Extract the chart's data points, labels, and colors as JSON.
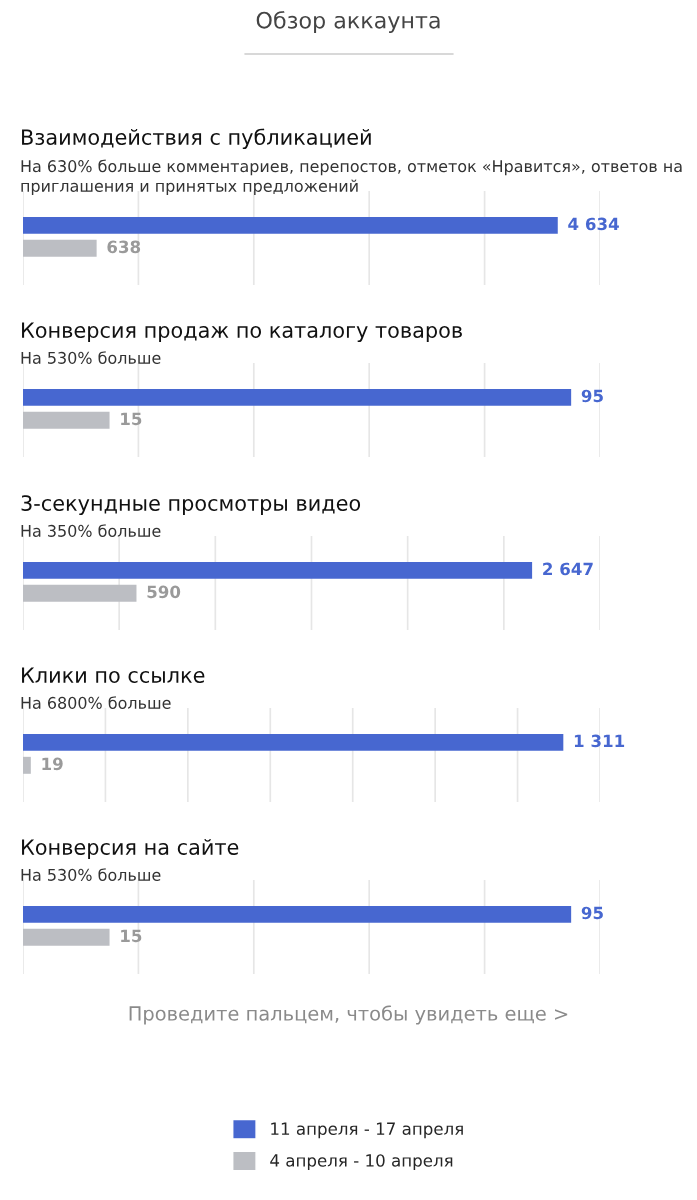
{
  "chart_data": [
    {
      "type": "bar",
      "orientation": "horizontal",
      "title": "Взаимодействия с публикацией",
      "subtitle": "На 630% больше комментариев, перепостов, отметок «Нравится», ответов на приглашения и принятых предложений",
      "annotations": [
        "Обзор аккаунта"
      ],
      "categories": [
        null
      ],
      "xlim": [
        0,
        5000
      ],
      "xticks": [
        {
          "value": 0,
          "label": null
        },
        {
          "value": 1000,
          "label": null
        },
        {
          "value": 2000,
          "label": null
        },
        {
          "value": 3000,
          "label": null
        },
        {
          "value": 4000,
          "label": null
        },
        {
          "value": 5000,
          "label": null
        }
      ],
      "grid": "x",
      "series": [
        {
          "color": "#4767d0",
          "values": [
            4634
          ],
          "value_labels": [
            "4 634"
          ]
        },
        {
          "color": "#bcbec3",
          "values": [
            638
          ],
          "value_labels": [
            "638"
          ]
        }
      ]
    },
    {
      "type": "bar",
      "orientation": "horizontal",
      "title": "Конверсия продаж по каталогу товаров",
      "subtitle": "На 530% больше",
      "categories": [
        null
      ],
      "xlim": [
        0,
        100
      ],
      "xticks": [
        {
          "value": 0,
          "label": null
        },
        {
          "value": 20,
          "label": null
        },
        {
          "value": 40,
          "label": null
        },
        {
          "value": 60,
          "label": null
        },
        {
          "value": 80,
          "label": null
        },
        {
          "value": 100,
          "label": null
        }
      ],
      "grid": "x",
      "data_labels": true,
      "series": [
        {
          "color": "#4767d0",
          "values": [
            95
          ]
        },
        {
          "color": "#bcbec3",
          "values": [
            15
          ]
        }
      ]
    },
    {
      "type": "bar",
      "orientation": "horizontal",
      "title": "3-секундные просмотры видео",
      "subtitle": "На 350% больше",
      "categories": [
        null
      ],
      "xlim": [
        0,
        3000
      ],
      "xticks": [
        {
          "value": 0,
          "label": null
        },
        {
          "value": 500,
          "label": null
        },
        {
          "value": 1000,
          "label": null
        },
        {
          "value": 1500,
          "label": null
        },
        {
          "value": 2000,
          "label": null
        },
        {
          "value": 2500,
          "label": null
        },
        {
          "value": 3000,
          "label": null
        }
      ],
      "grid": "x",
      "series": [
        {
          "color": "#4767d0",
          "values": [
            2647
          ],
          "value_labels": [
            "2 647"
          ]
        },
        {
          "color": "#bcbec3",
          "values": [
            590
          ],
          "value_labels": [
            "590"
          ]
        }
      ]
    },
    {
      "type": "bar",
      "orientation": "horizontal",
      "title": "Клики по ссылке",
      "subtitle": "На 6800% больше",
      "categories": [
        null
      ],
      "xlim": [
        0,
        1400
      ],
      "xticks": [
        {
          "value": 0,
          "label": null
        },
        {
          "value": 200,
          "label": null
        },
        {
          "value": 400,
          "label": null
        },
        {
          "value": 600,
          "label": null
        },
        {
          "value": 800,
          "label": null
        },
        {
          "value": 1000,
          "label": null
        },
        {
          "value": 1200,
          "label": null
        },
        {
          "value": 1400,
          "label": null
        }
      ],
      "grid": "x",
      "series": [
        {
          "color": "#4767d0",
          "values": [
            1311
          ],
          "value_labels": [
            "1 311"
          ]
        },
        {
          "color": "#bcbec3",
          "values": [
            19
          ],
          "value_labels": [
            "19"
          ]
        }
      ]
    },
    {
      "type": "bar",
      "orientation": "horizontal",
      "title": "Конверсия на сайте",
      "subtitle": "На 530% больше",
      "annotations": [
        "Проведите пальцем, чтобы увидеть еще >"
      ],
      "categories": [
        null
      ],
      "xlim": [
        0,
        100
      ],
      "xticks": [
        {
          "value": 0,
          "label": null
        },
        {
          "value": 20,
          "label": null
        },
        {
          "value": 40,
          "label": null
        },
        {
          "value": 60,
          "label": null
        },
        {
          "value": 80,
          "label": null
        },
        {
          "value": 100,
          "label": null
        }
      ],
      "grid": "x",
      "legend": "bottom",
      "data_labels": true,
      "series": [
        {
          "name": "11 апреля - 17 апреля",
          "color": "#4767d0",
          "values": [
            95
          ]
        },
        {
          "name": "4 апреля - 10 апреля",
          "color": "#bcbec3",
          "values": [
            15
          ]
        }
      ]
    }
  ]
}
